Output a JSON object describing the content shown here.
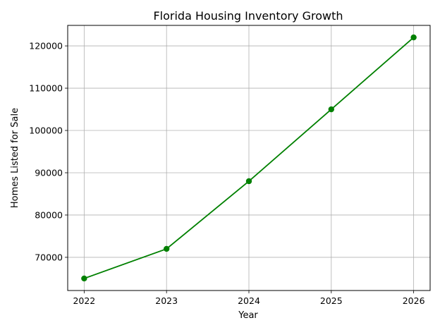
{
  "chart_data": {
    "type": "line",
    "title": "Florida Housing Inventory Growth",
    "xlabel": "Year",
    "ylabel": "Homes Listed for Sale",
    "x": [
      2022,
      2023,
      2024,
      2025,
      2026
    ],
    "x_tick_labels": [
      "2022",
      "2023",
      "2024",
      "2025",
      "2026"
    ],
    "series": [
      {
        "values": [
          65000,
          72000,
          88000,
          105000,
          122000
        ],
        "color": "#008000",
        "marker": "circle"
      }
    ],
    "y_ticks": [
      70000,
      80000,
      90000,
      100000,
      110000,
      120000
    ],
    "y_tick_labels": [
      "70000",
      "80000",
      "90000",
      "100000",
      "110000",
      "120000"
    ],
    "xlim": [
      2021.8,
      2026.2
    ],
    "ylim": [
      62150,
      124850
    ],
    "grid": true
  }
}
